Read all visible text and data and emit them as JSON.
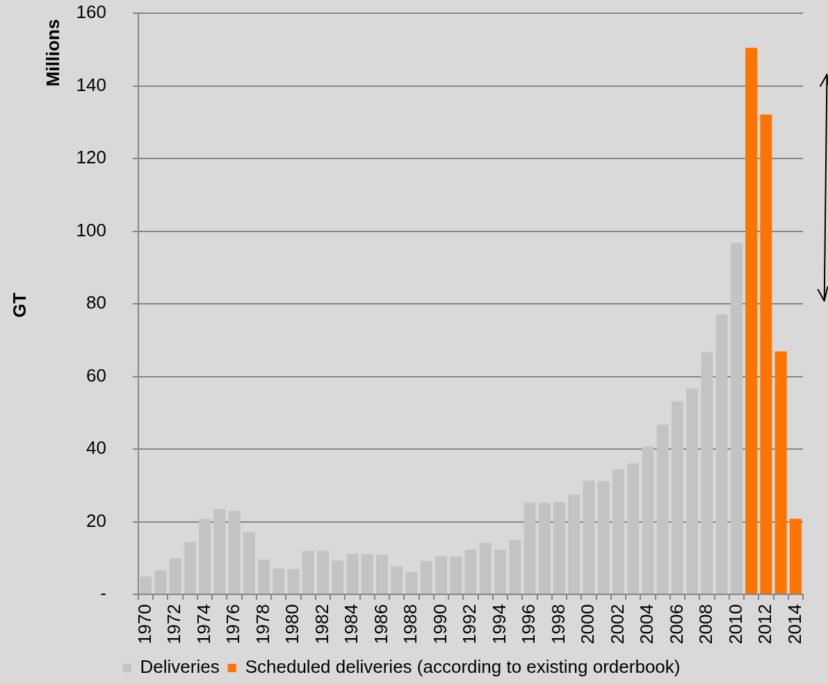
{
  "chart_data": {
    "type": "bar",
    "ylabel": "GT",
    "annotations": [
      "Millions"
    ],
    "categories": [
      "1970",
      null,
      "1972",
      null,
      "1974",
      null,
      "1976",
      null,
      "1978",
      null,
      "1980",
      null,
      "1982",
      null,
      "1984",
      null,
      "1986",
      null,
      "1988",
      null,
      "1990",
      null,
      "1992",
      null,
      "1994",
      null,
      "1996",
      null,
      "1998",
      null,
      "2000",
      null,
      "2002",
      null,
      "2004",
      null,
      "2006",
      null,
      "2008",
      null,
      "2010",
      null,
      "2012",
      null,
      "2014"
    ],
    "series": [
      {
        "name": "Deliveries",
        "color": "#c3c3c3",
        "values": [
          4.9,
          6.6,
          9.9,
          14.4,
          20.7,
          23.5,
          22.9,
          17.1,
          9.6,
          7.1,
          7.0,
          11.9,
          12.0,
          9.3,
          11.2,
          11.1,
          10.9,
          7.7,
          6.1,
          9.2,
          10.5,
          10.4,
          12.3,
          14.1,
          12.3,
          15.0,
          25.2,
          25.2,
          25.4,
          27.4,
          31.3,
          31.1,
          34.4,
          36.1,
          40.6,
          46.7,
          53.1,
          56.6,
          66.7,
          77.1,
          96.8,
          null,
          null,
          null,
          null
        ]
      },
      {
        "name": "Scheduled deliveries (according to existing orderbook)",
        "color": "#ff7400",
        "values": [
          null,
          null,
          null,
          null,
          null,
          null,
          null,
          null,
          null,
          null,
          null,
          null,
          null,
          null,
          null,
          null,
          null,
          null,
          null,
          null,
          null,
          null,
          null,
          null,
          null,
          null,
          null,
          null,
          null,
          null,
          null,
          null,
          null,
          null,
          null,
          null,
          null,
          null,
          null,
          null,
          null,
          150.5,
          132.1,
          66.9,
          20.8
        ]
      }
    ],
    "ylim": [
      0,
      160
    ],
    "yticks": [
      {
        "value": 0,
        "label": "-"
      },
      20,
      40,
      60,
      80,
      100,
      120,
      140,
      160
    ],
    "grid": "y",
    "legend": "bottom"
  }
}
